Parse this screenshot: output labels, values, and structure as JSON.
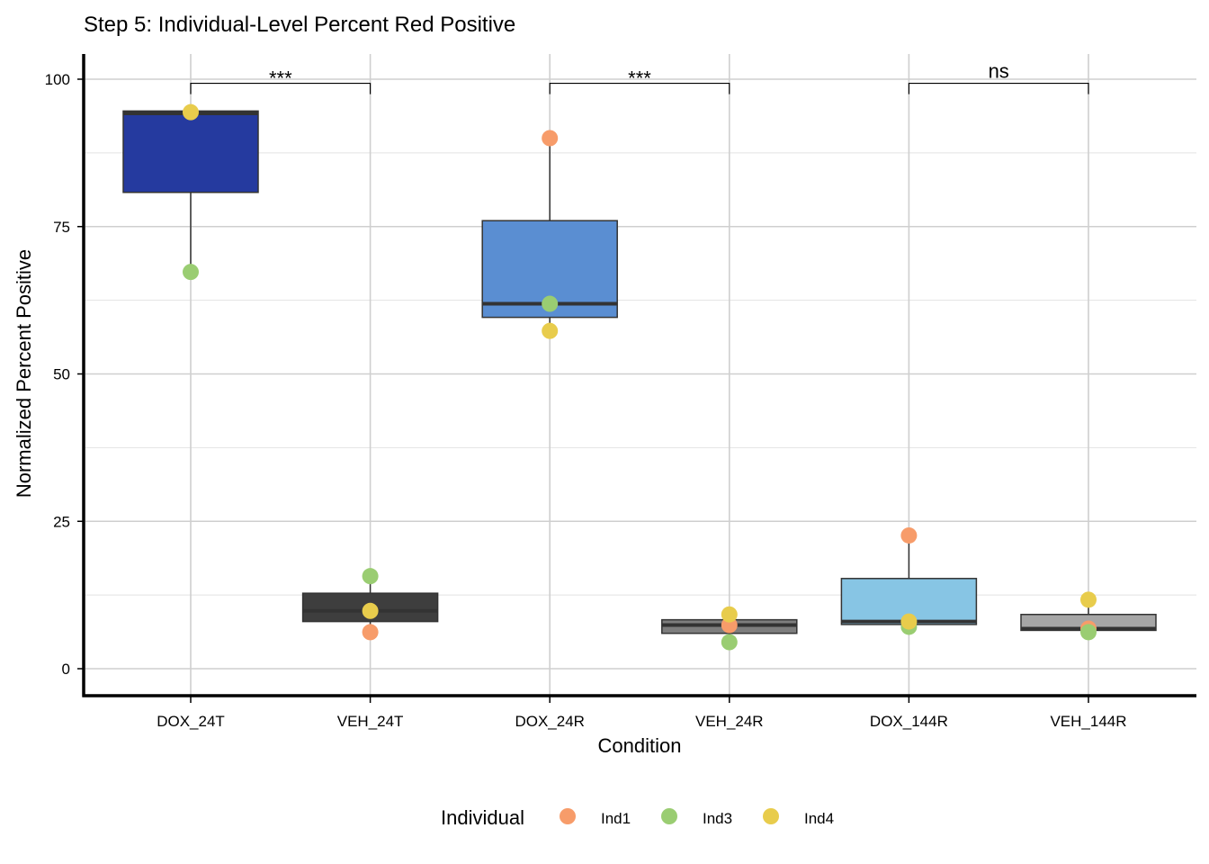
{
  "chart_data": {
    "type": "box",
    "title": "Step 5: Individual-Level Percent Red Positive",
    "xlabel": "Condition",
    "ylabel": "Normalized Percent Positive",
    "ylim": [
      -5,
      105
    ],
    "yticks": [
      0,
      25,
      50,
      75,
      100
    ],
    "y_minor_gridlines": [
      12.5,
      37.5,
      62.5,
      87.5
    ],
    "grid": true,
    "legend_position": "bottom",
    "categories": [
      "DOX_24T",
      "VEH_24T",
      "DOX_24R",
      "VEH_24R",
      "DOX_144R",
      "VEH_144R"
    ],
    "boxes": [
      {
        "condition": "DOX_24T",
        "fill": "#253A9F",
        "min": 67.3,
        "q1": 80.8,
        "median": 94.2,
        "q3": 94.6,
        "max": 94.6
      },
      {
        "condition": "VEH_24T",
        "fill": "#3E3E3E",
        "min": 6.2,
        "q1": 8.0,
        "median": 9.8,
        "q3": 12.8,
        "max": 15.7
      },
      {
        "condition": "DOX_24R",
        "fill": "#5A8ED2",
        "min": 57.3,
        "q1": 59.6,
        "median": 61.9,
        "q3": 76.0,
        "max": 90.0
      },
      {
        "condition": "VEH_24R",
        "fill": "#7E7E7E",
        "min": 4.5,
        "q1": 6.0,
        "median": 7.4,
        "q3": 8.3,
        "max": 9.2
      },
      {
        "condition": "DOX_144R",
        "fill": "#87C5E4",
        "min": 7.1,
        "q1": 7.5,
        "median": 8.0,
        "q3": 15.3,
        "max": 22.6
      },
      {
        "condition": "VEH_144R",
        "fill": "#A6A6A6",
        "min": 6.2,
        "q1": 6.5,
        "median": 6.8,
        "q3": 9.2,
        "max": 11.7
      }
    ],
    "series": [
      {
        "name": "Ind1",
        "color": "#F79C6A",
        "values": [
          null,
          6.2,
          90.0,
          7.4,
          22.6,
          6.8
        ]
      },
      {
        "name": "Ind3",
        "color": "#9ACD72",
        "values": [
          67.3,
          15.7,
          61.9,
          4.5,
          7.1,
          6.2
        ]
      },
      {
        "name": "Ind4",
        "color": "#E8CC4C",
        "values": [
          94.4,
          9.8,
          57.3,
          9.2,
          8.0,
          11.7
        ]
      }
    ],
    "legend": {
      "title": "Individual",
      "entries": [
        "Ind1",
        "Ind3",
        "Ind4"
      ]
    },
    "comparisons": [
      {
        "from": "DOX_24T",
        "to": "VEH_24T",
        "label": "***",
        "y": 99.3
      },
      {
        "from": "DOX_24R",
        "to": "VEH_24R",
        "label": "***",
        "y": 99.3
      },
      {
        "from": "DOX_144R",
        "to": "VEH_144R",
        "label": "ns",
        "y": 99.3
      }
    ]
  }
}
